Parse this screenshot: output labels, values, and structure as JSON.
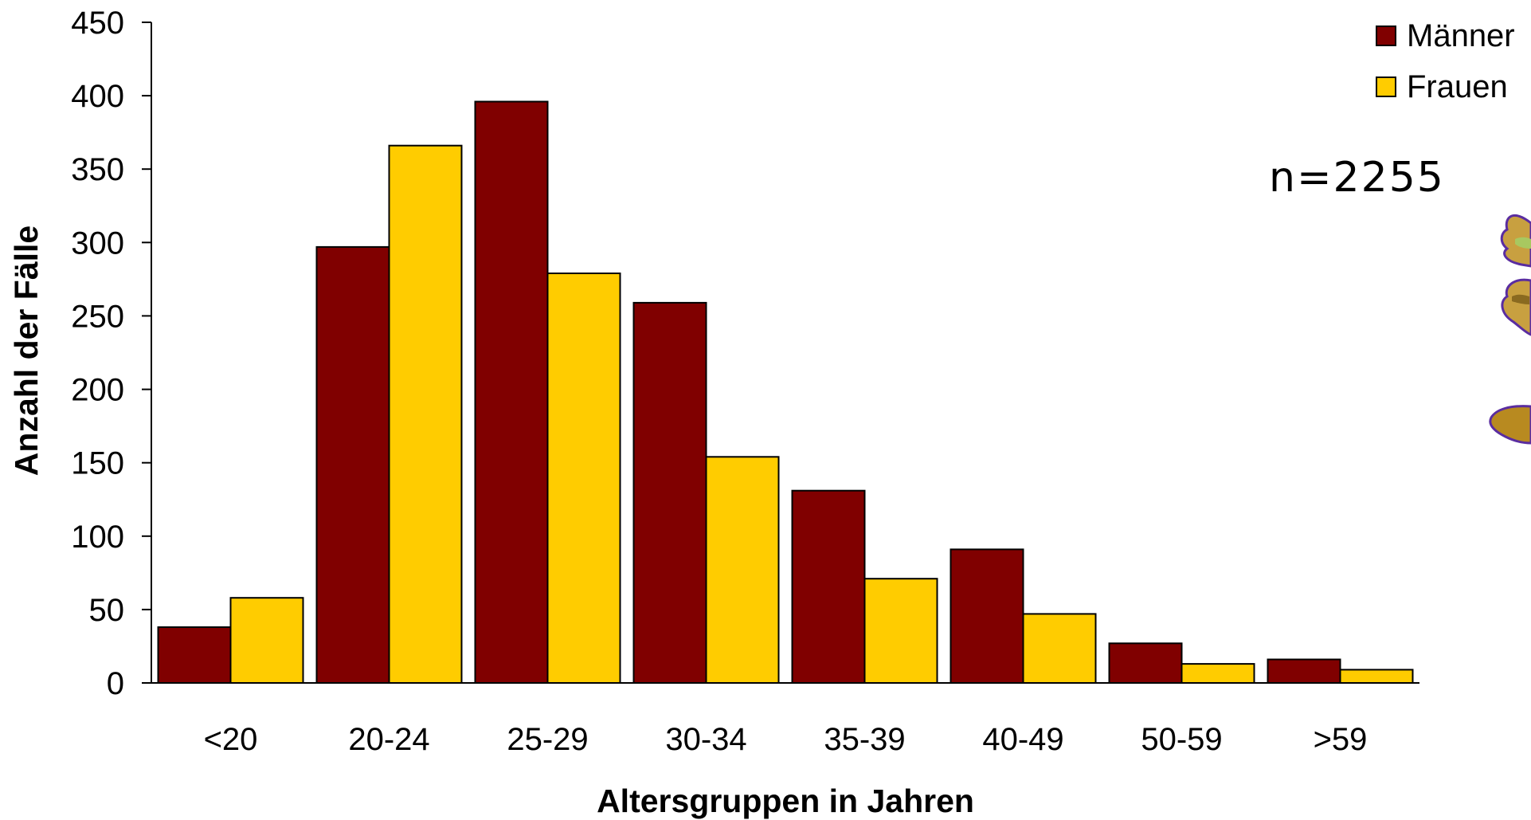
{
  "chart_data": {
    "type": "bar",
    "categories": [
      "<20",
      "20-24",
      "25-29",
      "30-34",
      "35-39",
      "40-49",
      "50-59",
      ">59"
    ],
    "series": [
      {
        "name": "Männer",
        "color": "#800000",
        "values": [
          38,
          297,
          396,
          259,
          131,
          91,
          27,
          16
        ]
      },
      {
        "name": "Frauen",
        "color": "#FFCC00",
        "values": [
          58,
          366,
          279,
          154,
          71,
          47,
          13,
          9
        ]
      }
    ],
    "xlabel": "Altersgruppen in Jahren",
    "ylabel": "Anzahl der Fälle",
    "ylim": [
      0,
      450
    ],
    "yticks": [
      0,
      50,
      100,
      150,
      200,
      250,
      300,
      350,
      400,
      450
    ],
    "grid": false,
    "legend_position": "top-right",
    "annotation": "n=2255"
  },
  "decoration": {
    "icon": "stacked-hats-illustration-icon"
  }
}
